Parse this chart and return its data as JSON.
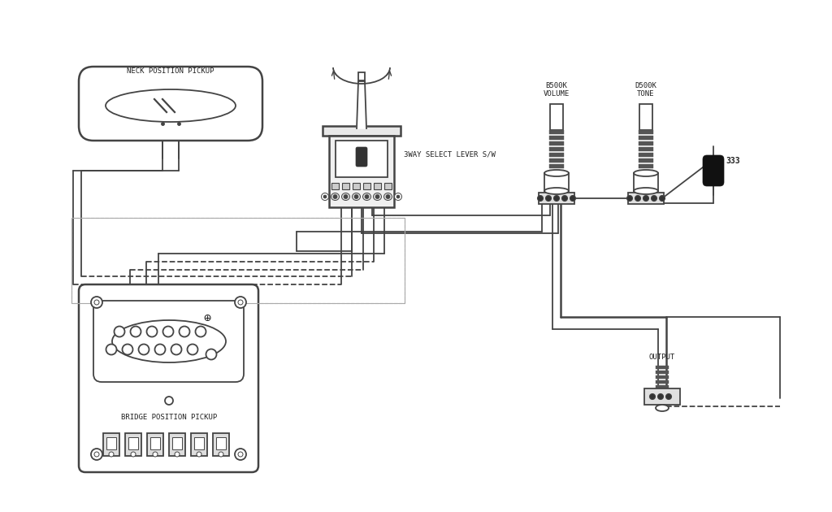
{
  "bg_color": "#ffffff",
  "lc": "#444444",
  "dc": "#222222",
  "neck_pickup_label": "NECK POSITION PICKUP",
  "bridge_pickup_label": "BRIDGE POSITION PICKUP",
  "switch_label": "3WAY SELECT LEVER S/W",
  "volume_label": "B500K\nVOLUME",
  "tone_label": "D500K\nTONE",
  "cap_label": "333",
  "output_label": "OUTPUT",
  "figsize": [
    10.24,
    6.3
  ],
  "dpi": 100
}
